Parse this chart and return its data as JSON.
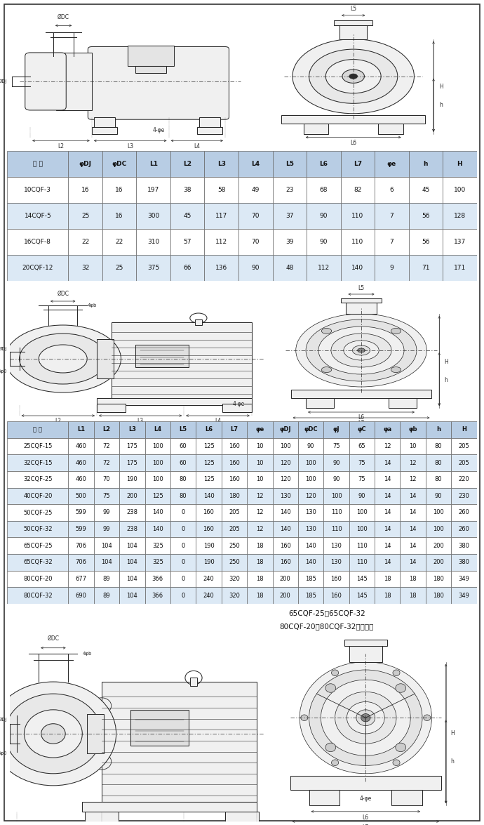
{
  "table1_header": [
    "型 号",
    "φDJ",
    "φDC",
    "L1",
    "L2",
    "L3",
    "L4",
    "L5",
    "L6",
    "L7",
    "φe",
    "h",
    "H"
  ],
  "table1_data": [
    [
      "10CQF-3",
      "16",
      "16",
      "197",
      "38",
      "58",
      "49",
      "23",
      "68",
      "82",
      "6",
      "45",
      "100"
    ],
    [
      "14CQF-5",
      "25",
      "16",
      "300",
      "45",
      "117",
      "70",
      "37",
      "90",
      "110",
      "7",
      "56",
      "128"
    ],
    [
      "16CQF-8",
      "22",
      "22",
      "310",
      "57",
      "112",
      "70",
      "39",
      "90",
      "110",
      "7",
      "56",
      "137"
    ],
    [
      "20CQF-12",
      "32",
      "25",
      "375",
      "66",
      "136",
      "90",
      "48",
      "112",
      "140",
      "9",
      "71",
      "171"
    ]
  ],
  "table2_header": [
    "型 号",
    "L1",
    "L2",
    "L3",
    "L4",
    "L5",
    "L6",
    "L7",
    "φe",
    "φDJ",
    "φDC",
    "φJ",
    "φC",
    "φa",
    "φb",
    "h",
    "H"
  ],
  "table2_data": [
    [
      "25CQF-15",
      "460",
      "72",
      "175",
      "100",
      "60",
      "125",
      "160",
      "10",
      "100",
      "90",
      "75",
      "65",
      "12",
      "10",
      "80",
      "205"
    ],
    [
      "32CQF-15",
      "460",
      "72",
      "175",
      "100",
      "60",
      "125",
      "160",
      "10",
      "120",
      "100",
      "90",
      "75",
      "14",
      "12",
      "80",
      "205"
    ],
    [
      "32CQF-25",
      "460",
      "70",
      "190",
      "100",
      "80",
      "125",
      "160",
      "10",
      "120",
      "100",
      "90",
      "75",
      "14",
      "12",
      "80",
      "220"
    ],
    [
      "40CQF-20",
      "500",
      "75",
      "200",
      "125",
      "80",
      "140",
      "180",
      "12",
      "130",
      "120",
      "100",
      "90",
      "14",
      "14",
      "90",
      "230"
    ],
    [
      "50CQF-25",
      "599",
      "99",
      "238",
      "140",
      "0",
      "160",
      "205",
      "12",
      "140",
      "130",
      "110",
      "100",
      "14",
      "14",
      "100",
      "260"
    ],
    [
      "50CQF-32",
      "599",
      "99",
      "238",
      "140",
      "0",
      "160",
      "205",
      "12",
      "140",
      "130",
      "110",
      "100",
      "14",
      "14",
      "100",
      "260"
    ],
    [
      "65CQF-25",
      "706",
      "104",
      "104",
      "325",
      "0",
      "190",
      "250",
      "18",
      "160",
      "140",
      "130",
      "110",
      "14",
      "14",
      "200",
      "380"
    ],
    [
      "65CQF-32",
      "706",
      "104",
      "104",
      "325",
      "0",
      "190",
      "250",
      "18",
      "160",
      "140",
      "130",
      "110",
      "14",
      "14",
      "200",
      "380"
    ],
    [
      "80CQF-20",
      "677",
      "89",
      "104",
      "366",
      "0",
      "240",
      "320",
      "18",
      "200",
      "185",
      "160",
      "145",
      "18",
      "18",
      "180",
      "349"
    ],
    [
      "80CQF-32",
      "690",
      "89",
      "104",
      "366",
      "0",
      "240",
      "320",
      "18",
      "200",
      "185",
      "160",
      "145",
      "18",
      "18",
      "180",
      "349"
    ]
  ],
  "note_line1": "65CQF-25、65CQF-32",
  "note_line2": "80CQF-20、80CQF-32按照此图",
  "bg_color": "#ffffff",
  "header_bg": "#b8cde4",
  "row_bg_odd": "#ffffff",
  "row_bg_even": "#dce9f5",
  "gc": "#2a2a2a",
  "lw": 0.75
}
